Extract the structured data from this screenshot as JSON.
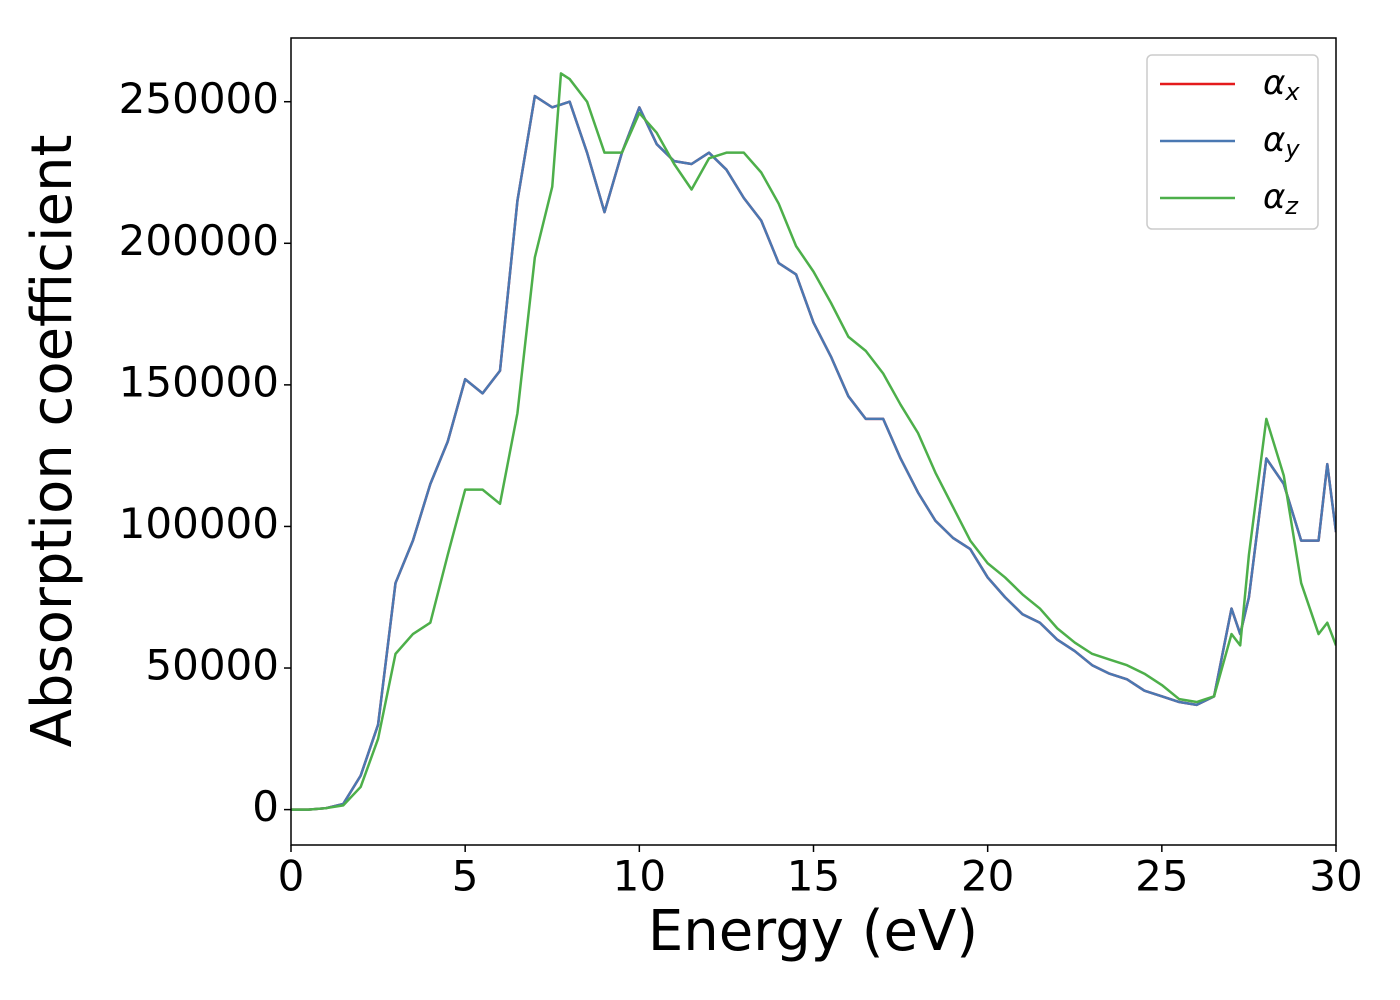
{
  "chart_data": {
    "type": "line",
    "xlabel": "Energy (eV)",
    "ylabel": "Absorption coefficient",
    "x": [
      0,
      0.5,
      1,
      1.5,
      2,
      2.5,
      3,
      3.5,
      4,
      4.5,
      5,
      5.5,
      6,
      6.5,
      7,
      7.5,
      7.75,
      8,
      8.5,
      9,
      9.5,
      10,
      10.5,
      11,
      11.5,
      12,
      12.5,
      13,
      13.5,
      14,
      14.5,
      15,
      15.5,
      16,
      16.5,
      17,
      17.5,
      18,
      18.5,
      19,
      19.5,
      20,
      20.5,
      21,
      21.5,
      22,
      22.5,
      23,
      23.5,
      24,
      24.5,
      25,
      25.5,
      26,
      26.5,
      27,
      27.25,
      27.5,
      28,
      28.5,
      29,
      29.5,
      29.75,
      30
    ],
    "series": [
      {
        "name": "αx",
        "color": "#e41a1c",
        "values": [
          0,
          0,
          500,
          2000,
          12000,
          30000,
          80000,
          95000,
          115000,
          130000,
          152000,
          147000,
          155000,
          215000,
          252000,
          248000,
          249000,
          250000,
          232000,
          211000,
          232000,
          248000,
          235000,
          229000,
          228000,
          232000,
          226000,
          216000,
          208000,
          193000,
          189000,
          172000,
          160000,
          146000,
          138000,
          138000,
          124000,
          112000,
          102000,
          96000,
          92000,
          82000,
          75000,
          69000,
          66000,
          60000,
          56000,
          51000,
          48000,
          46000,
          42000,
          40000,
          38000,
          37000,
          40000,
          71000,
          62000,
          75000,
          124000,
          115000,
          95000,
          95000,
          122000,
          98000
        ]
      },
      {
        "name": "αy",
        "color": "#4a78b2",
        "values": [
          0,
          0,
          500,
          2000,
          12000,
          30000,
          80000,
          95000,
          115000,
          130000,
          152000,
          147000,
          155000,
          215000,
          252000,
          248000,
          249000,
          250000,
          232000,
          211000,
          232000,
          248000,
          235000,
          229000,
          228000,
          232000,
          226000,
          216000,
          208000,
          193000,
          189000,
          172000,
          160000,
          146000,
          138000,
          138000,
          124000,
          112000,
          102000,
          96000,
          92000,
          82000,
          75000,
          69000,
          66000,
          60000,
          56000,
          51000,
          48000,
          46000,
          42000,
          40000,
          38000,
          37000,
          40000,
          71000,
          62000,
          75000,
          124000,
          115000,
          95000,
          95000,
          122000,
          98000
        ]
      },
      {
        "name": "αz",
        "color": "#4daf4a",
        "values": [
          0,
          0,
          500,
          1500,
          8000,
          25000,
          55000,
          62000,
          66000,
          90000,
          113000,
          113000,
          108000,
          140000,
          195000,
          220000,
          260000,
          258000,
          250000,
          232000,
          232000,
          246000,
          239000,
          228000,
          219000,
          230000,
          232000,
          232000,
          225000,
          214000,
          199000,
          190000,
          179000,
          167000,
          162000,
          154000,
          143000,
          133000,
          119000,
          107000,
          95000,
          87000,
          82000,
          76000,
          71000,
          64000,
          59000,
          55000,
          53000,
          51000,
          48000,
          44000,
          39000,
          38000,
          40000,
          62000,
          58000,
          90000,
          138000,
          118000,
          80000,
          62000,
          66000,
          58000
        ]
      }
    ],
    "xlim": [
      0,
      30
    ],
    "xticks": [
      0,
      5,
      10,
      15,
      20,
      25,
      30
    ],
    "ylim": [
      -12500,
      272500
    ],
    "yticks": [
      0,
      50000,
      100000,
      150000,
      200000,
      250000
    ],
    "legend": "upper right"
  }
}
